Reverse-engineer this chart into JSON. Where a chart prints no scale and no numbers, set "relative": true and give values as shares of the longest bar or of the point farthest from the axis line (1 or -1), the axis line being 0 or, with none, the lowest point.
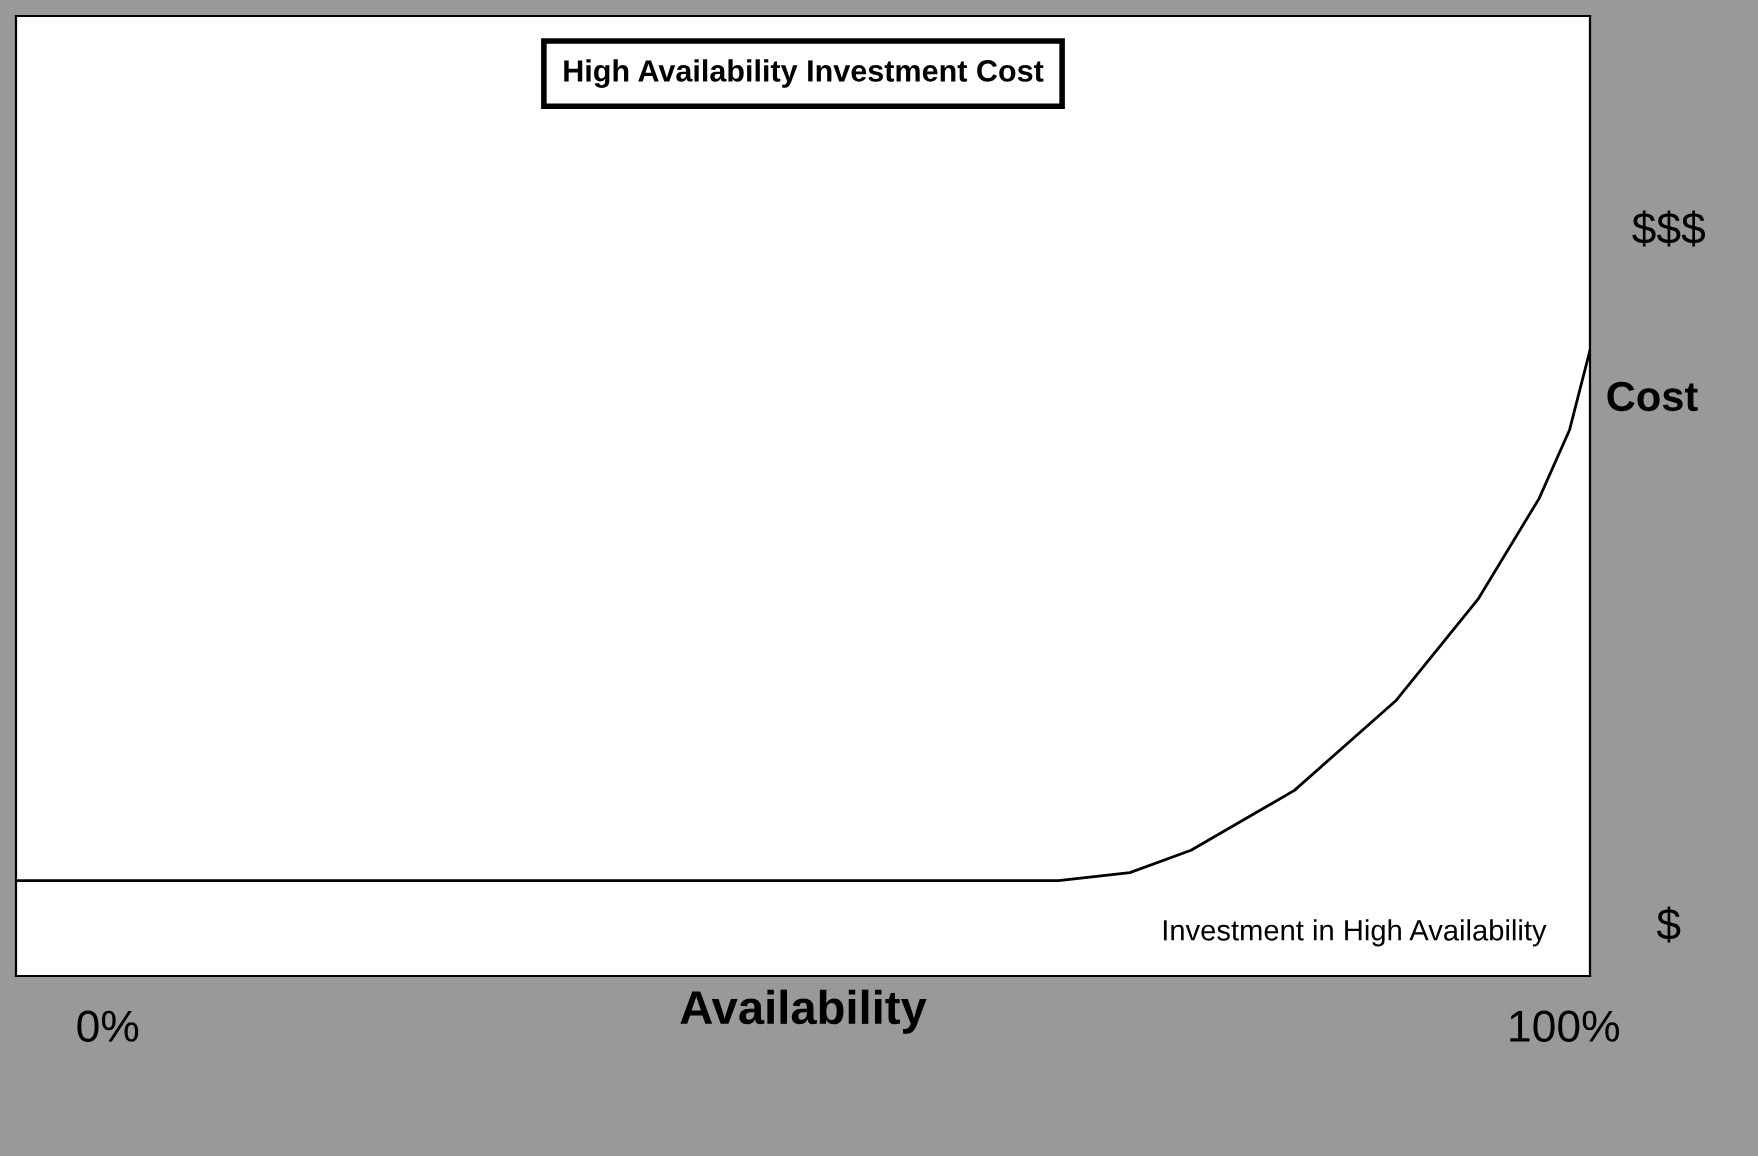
{
  "chart_data": {
    "type": "line",
    "title": "High Availability Investment Cost",
    "xlabel": "Availability",
    "ylabel": "Cost",
    "relative": true,
    "x": [
      -6.3,
      65.3,
      70.2,
      74.4,
      81.5,
      88.5,
      94.1,
      98.3,
      100.4,
      101.8
    ],
    "series": [
      {
        "color": "#000000",
        "values": [
          0,
          0,
          0.015,
          0.057,
          0.17,
          0.34,
          0.53,
          0.72,
          0.85,
          1
        ]
      }
    ],
    "xlim": [
      -6.3,
      101.8
    ],
    "xticks": [
      {
        "value": 0,
        "label": "0%"
      },
      {
        "value": 100,
        "label": "100%"
      }
    ],
    "annotations": [
      "Investment in High Availability",
      "$$$",
      "$"
    ],
    "grid": false,
    "legend": false,
    "marker": "none",
    "line_style": "solid"
  }
}
